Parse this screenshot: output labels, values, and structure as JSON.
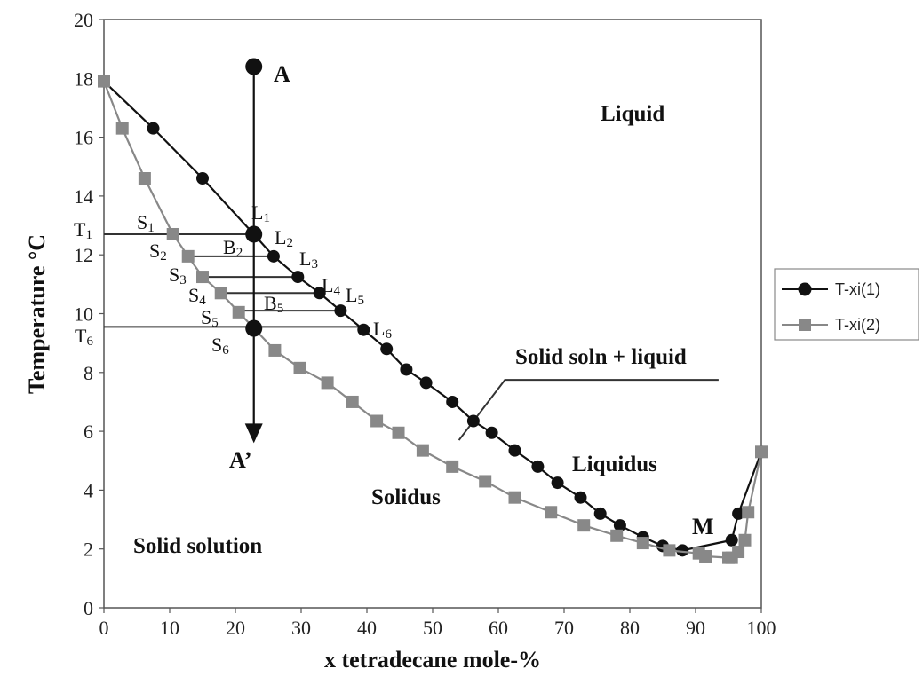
{
  "chart_data": {
    "type": "line",
    "xlabel": "x tetradecane mole-%",
    "ylabel": "Temperature °C",
    "xlim": [
      0,
      100
    ],
    "ylim": [
      0,
      20
    ],
    "x_ticks": [
      "0",
      "10",
      "20",
      "30",
      "40",
      "50",
      "60",
      "70",
      "80",
      "90",
      "100"
    ],
    "y_ticks": [
      "0",
      "2",
      "4",
      "6",
      "8",
      "10",
      "12",
      "14",
      "16",
      "18",
      "20"
    ],
    "grid": false,
    "legend_position": "right",
    "series": [
      {
        "name": "T-xi(1)",
        "color": "#111111",
        "marker": "circle",
        "x": [
          0,
          7.5,
          15,
          22.8,
          25.8,
          29.5,
          32.8,
          36,
          39.5,
          43,
          46,
          49,
          53,
          56.2,
          59,
          62.5,
          66,
          69,
          72.5,
          75.5,
          78.5,
          82,
          85,
          88,
          95.5,
          96.5,
          100
        ],
        "y": [
          17.9,
          16.3,
          14.6,
          12.7,
          11.95,
          11.25,
          10.7,
          10.1,
          9.45,
          8.8,
          8.1,
          7.65,
          7.0,
          6.35,
          5.95,
          5.35,
          4.8,
          4.25,
          3.75,
          3.2,
          2.8,
          2.4,
          2.1,
          1.95,
          2.3,
          3.2,
          5.3
        ]
      },
      {
        "name": "T-xi(2)",
        "color": "#888888",
        "marker": "square",
        "x": [
          0,
          2.8,
          6.2,
          10.5,
          12.8,
          15,
          17.8,
          20.5,
          26,
          29.8,
          34,
          37.8,
          41.5,
          44.8,
          48.5,
          53,
          58,
          62.5,
          68,
          73,
          78,
          82,
          86,
          90.5,
          91.5,
          95,
          95.5,
          96.5,
          97.5,
          98,
          100
        ],
        "y": [
          17.9,
          16.3,
          14.6,
          12.7,
          11.95,
          11.25,
          10.7,
          10.05,
          8.75,
          8.15,
          7.65,
          7.0,
          6.35,
          5.95,
          5.35,
          4.8,
          4.3,
          3.75,
          3.25,
          2.8,
          2.45,
          2.2,
          1.95,
          1.85,
          1.75,
          1.7,
          1.7,
          1.9,
          2.3,
          3.25,
          5.3
        ]
      }
    ],
    "construction": {
      "vertical_line": {
        "x": 22.8,
        "y_top": 18.4,
        "y_bottom": 5.6
      },
      "tie_lines": [
        {
          "y": 12.7,
          "x1": 0,
          "x2": 22.8
        },
        {
          "y": 11.95,
          "x1": 12.8,
          "x2": 25.8
        },
        {
          "y": 11.25,
          "x1": 15,
          "x2": 29.5
        },
        {
          "y": 10.7,
          "x1": 17.8,
          "x2": 32.8
        },
        {
          "y": 10.1,
          "x1": 20.5,
          "x2": 36
        },
        {
          "y": 9.55,
          "x1": 0,
          "x2": 39.5
        }
      ],
      "big_points": [
        {
          "x": 22.8,
          "y": 18.4
        },
        {
          "x": 22.8,
          "y": 12.7
        },
        {
          "x": 22.8,
          "y": 9.5
        }
      ],
      "pointer_line": [
        [
          54,
          5.7
        ],
        [
          61,
          7.75
        ],
        [
          93.5,
          7.75
        ]
      ]
    },
    "annotations": {
      "A": "A",
      "A_prime": "A’",
      "M": "M",
      "T1": "T1",
      "T6": "T6",
      "S1": "S1",
      "S2": "S2",
      "S3": "S3",
      "S4": "S4",
      "S5": "S5",
      "S6": "S6",
      "L1": "L1",
      "L2": "L2",
      "L3": "L3",
      "L4": "L4",
      "L5": "L5",
      "L6": "L6",
      "B2": "B2",
      "B5": "B5",
      "liquid": "Liquid",
      "solid_soln_liquid": "Solid soln + liquid",
      "liquidus": "Liquidus",
      "solidus": "Solidus",
      "solid_solution": "Solid solution"
    }
  }
}
